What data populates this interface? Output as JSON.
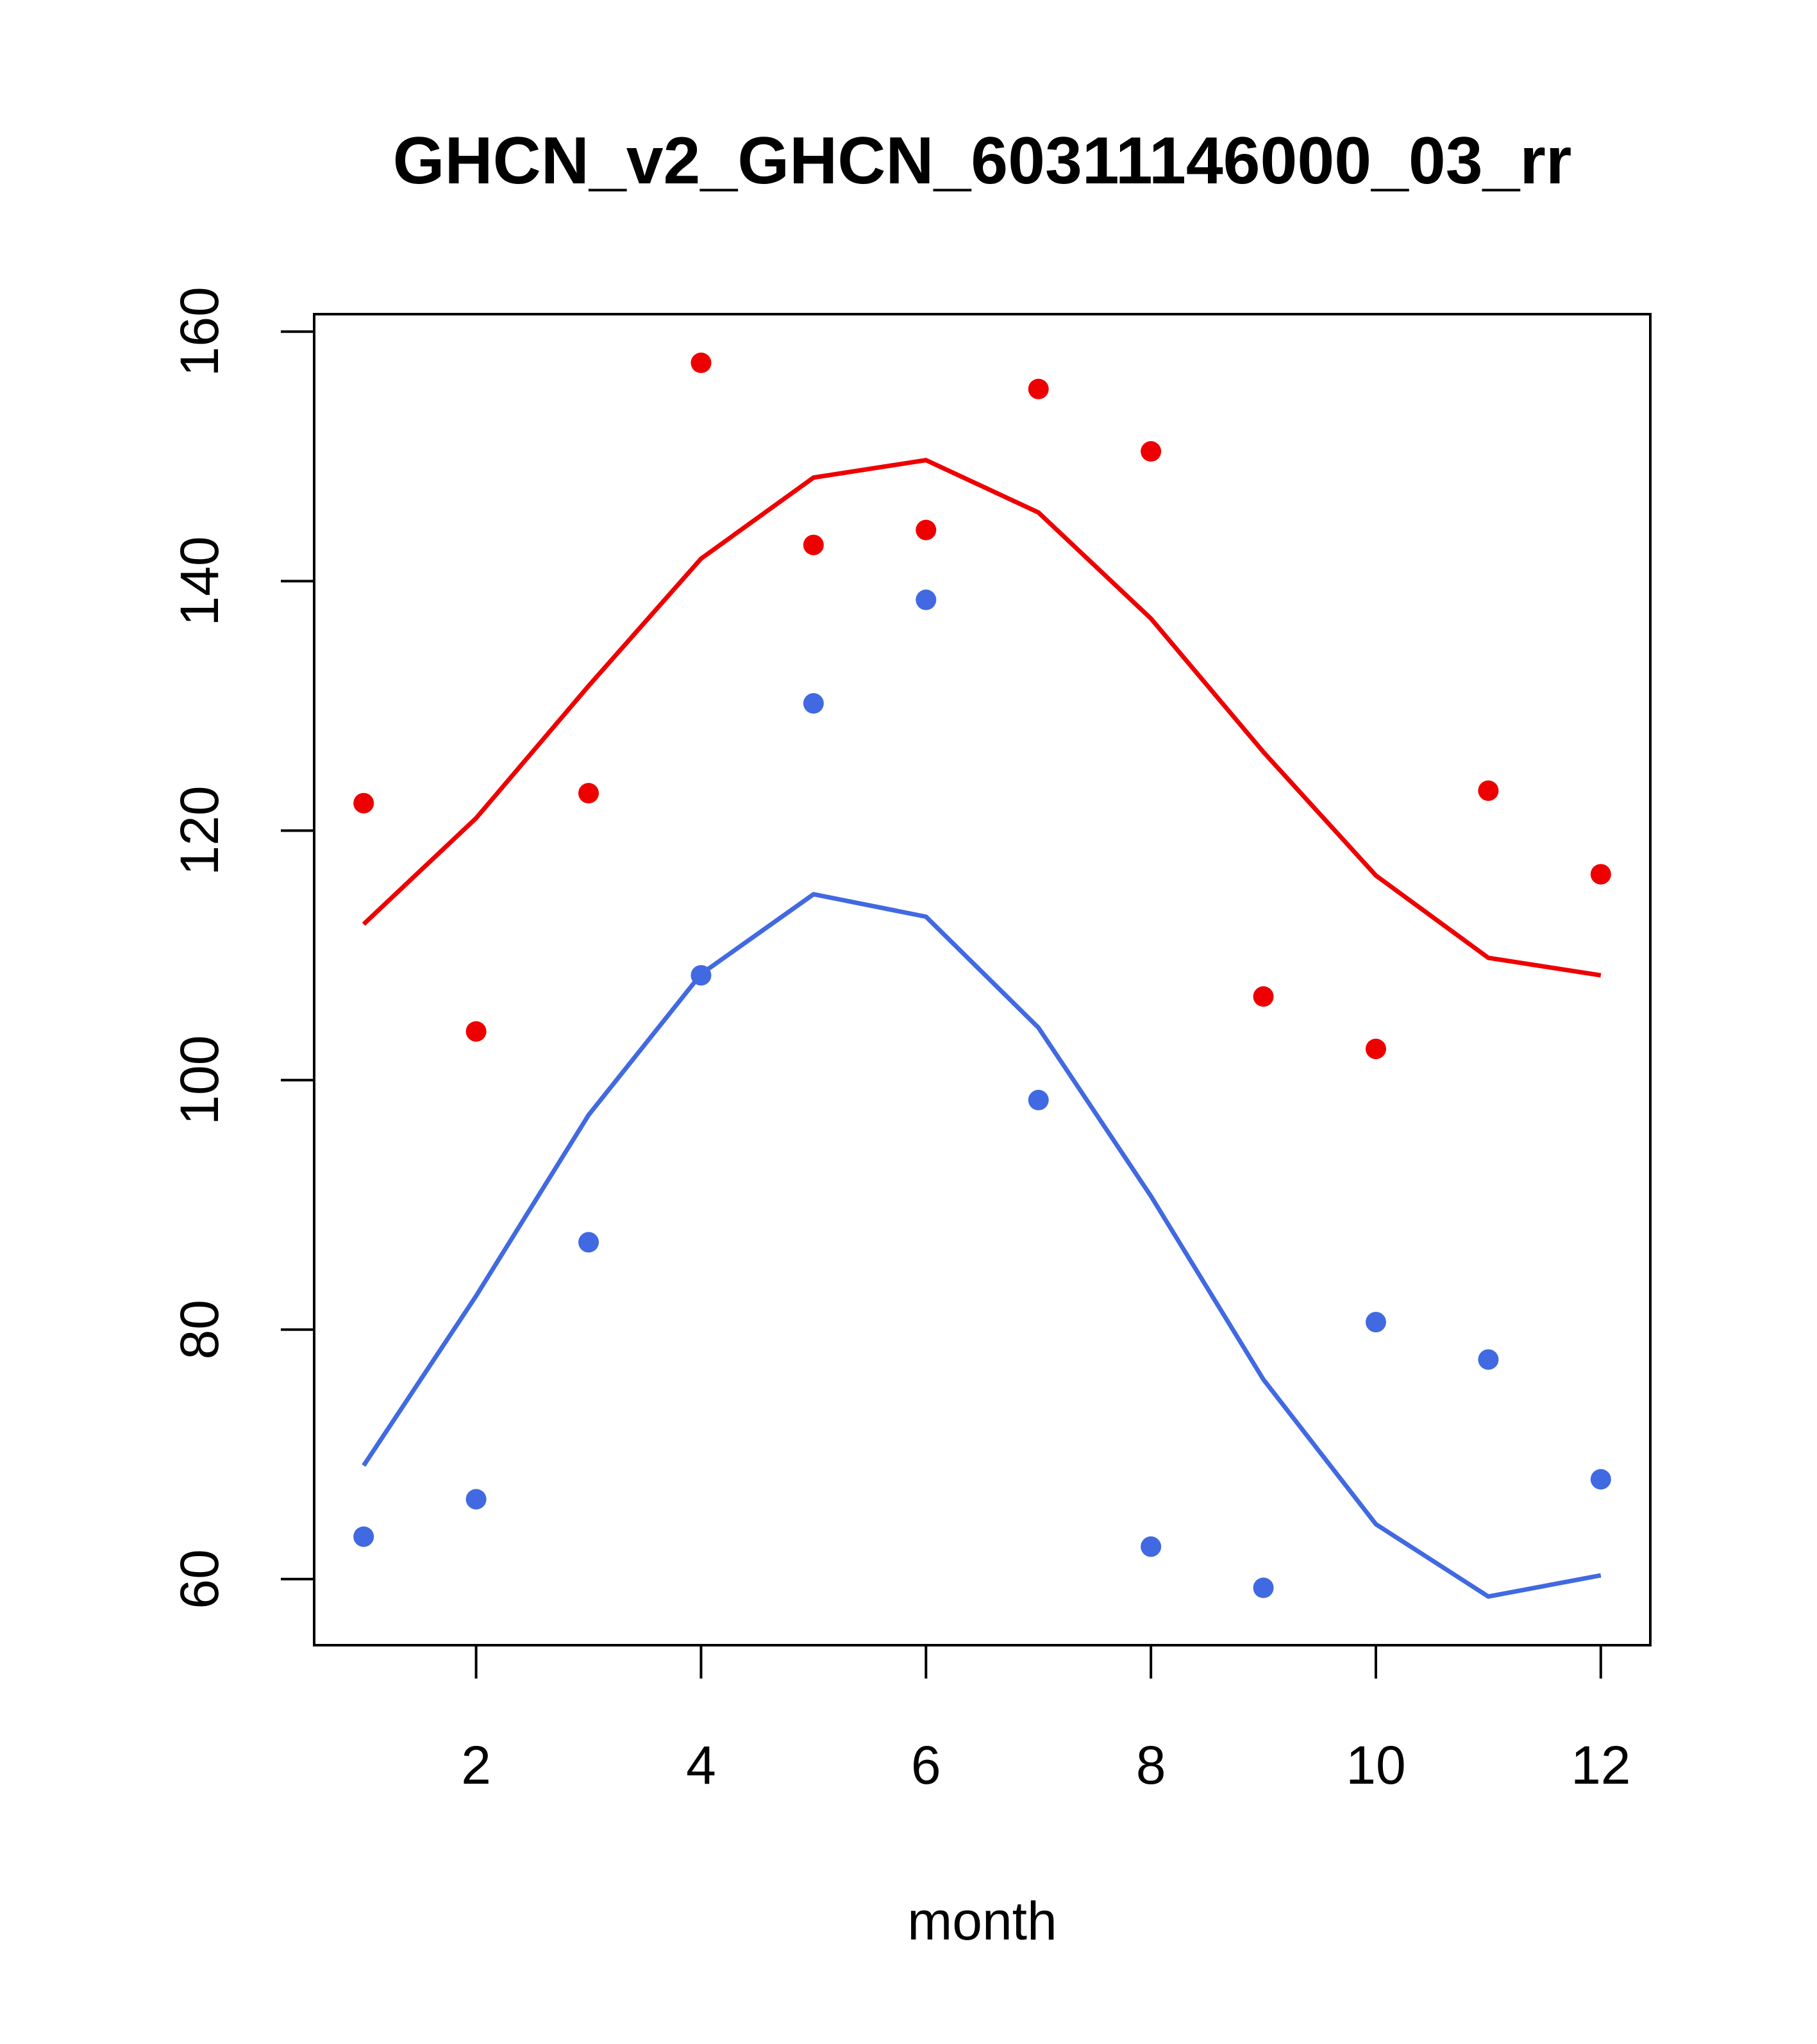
{
  "chart_data": {
    "type": "line",
    "title": "GHCN_v2_GHCN_60311146000_03_rr",
    "xlabel": "month",
    "ylabel": "",
    "xlim": [
      0.56,
      12.44
    ],
    "ylim": [
      54.7,
      161.4
    ],
    "x_ticks": [
      2,
      4,
      6,
      8,
      10,
      12
    ],
    "y_ticks": [
      60,
      80,
      100,
      120,
      140,
      160
    ],
    "grid": false,
    "legend": "none",
    "x": [
      1,
      2,
      3,
      4,
      5,
      6,
      7,
      8,
      9,
      10,
      11,
      12
    ],
    "series": [
      {
        "kind": "line",
        "color": "#ee0000",
        "values": [
          112.5,
          121.0,
          131.6,
          141.8,
          148.3,
          149.7,
          145.5,
          137.0,
          126.3,
          116.4,
          109.8,
          108.4
        ]
      },
      {
        "kind": "points",
        "color": "#ee0000",
        "values": [
          122.2,
          103.9,
          123.0,
          157.5,
          142.9,
          144.1,
          155.4,
          150.4,
          106.7,
          102.5,
          123.2,
          116.5
        ]
      },
      {
        "kind": "line",
        "color": "#4169e1",
        "values": [
          69.1,
          82.7,
          97.2,
          108.5,
          114.9,
          113.1,
          104.2,
          90.7,
          76.0,
          64.4,
          58.6,
          60.3
        ]
      },
      {
        "kind": "points",
        "color": "#4169e1",
        "values": [
          63.4,
          66.4,
          87.0,
          108.4,
          130.2,
          138.5,
          98.4,
          62.6,
          59.3,
          80.6,
          77.6,
          68.0
        ]
      }
    ]
  }
}
